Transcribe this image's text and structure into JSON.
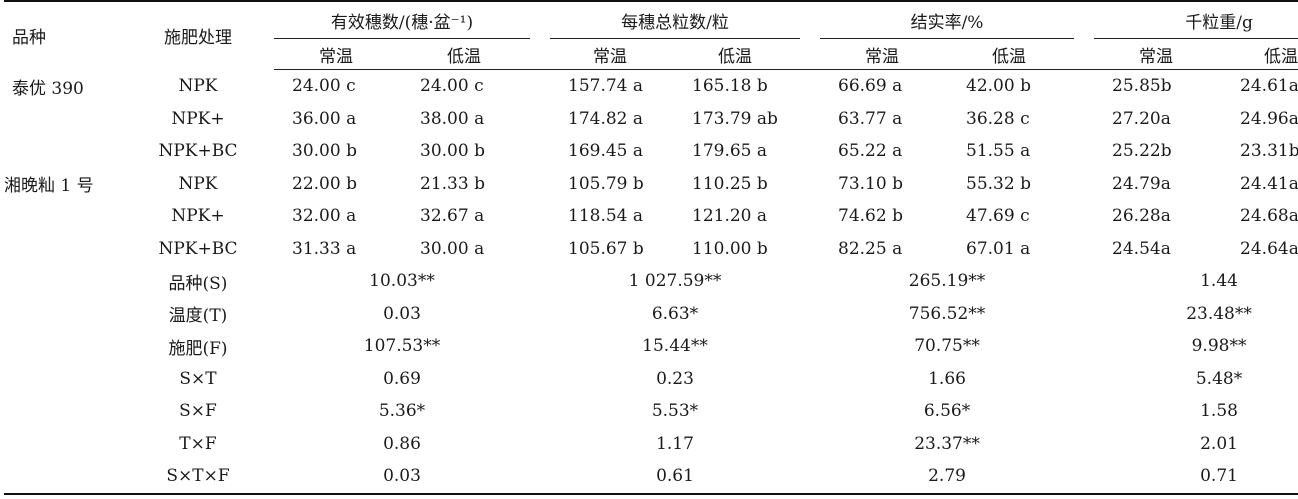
{
  "headers": {
    "variety": "品种",
    "treatment": "施肥处理",
    "groups": [
      {
        "label": "有效穗数/(穗·盆⁻¹)"
      },
      {
        "label": "每穗总粒数/粒"
      },
      {
        "label": "结实率/%"
      },
      {
        "label": "千粒重/g"
      }
    ],
    "sub_normal": "常温",
    "sub_low": "低温"
  },
  "rows": [
    {
      "variety": "泰优 390",
      "treatment": "NPK",
      "values": [
        "24.00 c",
        "24.00 c",
        "157.74 a",
        "165.18 b",
        "66.69 a",
        "42.00 b",
        "25.85b",
        "24.61a"
      ]
    },
    {
      "variety": "",
      "treatment": "NPK+",
      "values": [
        "36.00 a",
        "38.00 a",
        "174.82 a",
        "173.79 ab",
        "63.77 a",
        "36.28 c",
        "27.20a",
        "24.96a"
      ]
    },
    {
      "variety": "",
      "treatment": "NPK+BC",
      "values": [
        "30.00 b",
        "30.00 b",
        "169.45 a",
        "179.65 a",
        "65.22 a",
        "51.55 a",
        "25.22b",
        "23.31b"
      ]
    },
    {
      "variety": "湘晚籼 1 号",
      "treatment": "NPK",
      "values": [
        "22.00 b",
        "21.33 b",
        "105.79 b",
        "110.25 b",
        "73.10 b",
        "55.32 b",
        "24.79a",
        "24.41a"
      ]
    },
    {
      "variety": "",
      "treatment": "NPK+",
      "values": [
        "32.00 a",
        "32.67 a",
        "118.54 a",
        "121.20 a",
        "74.62 b",
        "47.69 c",
        "26.28a",
        "24.68a"
      ]
    },
    {
      "variety": "",
      "treatment": "NPK+BC",
      "values": [
        "31.33 a",
        "30.00 a",
        "105.67 b",
        "110.00 b",
        "82.25 a",
        "67.01 a",
        "24.54a",
        "24.64a"
      ]
    }
  ],
  "anova": [
    {
      "source": "品种(S)",
      "values": [
        "10.03**",
        "1 027.59**",
        "265.19**",
        "1.44"
      ]
    },
    {
      "source": "温度(T)",
      "values": [
        "0.03",
        "6.63*",
        "756.52**",
        "23.48**"
      ]
    },
    {
      "source": "施肥(F)",
      "values": [
        "107.53**",
        "15.44**",
        "70.75**",
        "9.98**"
      ]
    },
    {
      "source": "S×T",
      "values": [
        "0.69",
        "0.23",
        "1.66",
        "5.48*"
      ]
    },
    {
      "source": "S×F",
      "values": [
        "5.36*",
        "5.53*",
        "6.56*",
        "1.58"
      ]
    },
    {
      "source": "T×F",
      "values": [
        "0.86",
        "1.17",
        "23.37**",
        "2.01"
      ]
    },
    {
      "source": "S×T×F",
      "values": [
        "0.03",
        "0.61",
        "2.79",
        "0.71"
      ]
    }
  ]
}
